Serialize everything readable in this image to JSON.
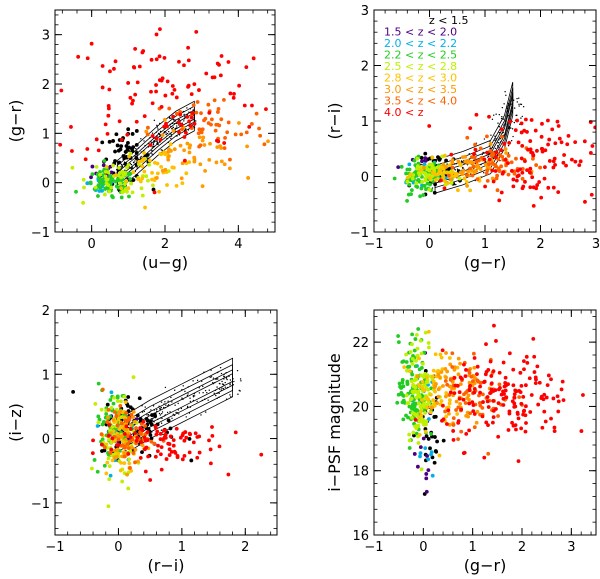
{
  "figure": {
    "description_colors": {
      "z_lt_1.5": "#000000",
      "z_1.5_2.0": "#4b0082",
      "z_2.0_2.2": "#00b0e8",
      "z_2.2_2.5": "#22cc22",
      "z_2.5_2.8": "#bff000",
      "z_2.8_3.0": "#ffc000",
      "z_3.0_3.5": "#ff9a00",
      "z_3.5_4.0": "#ff6000",
      "z_gt_4.0": "#ff0000"
    }
  },
  "chart_data": [
    {
      "type": "scatter",
      "panel": "top-left",
      "xlabel": "(u−g)",
      "ylabel": "(g−r)",
      "xlim": [
        -1.0,
        5.0
      ],
      "ylim": [
        -1.0,
        3.5
      ],
      "xticks": [
        0,
        2,
        4
      ],
      "xtick_labels": [
        "0",
        "2",
        "4"
      ],
      "yticks": [
        -1,
        0,
        1,
        2,
        3
      ],
      "ytick_labels": [
        "−1",
        "0",
        "1",
        "2",
        "3"
      ],
      "grid": false,
      "has_contours": true,
      "series": [
        {
          "color": "#000000",
          "center": [
            0.9,
            0.5
          ],
          "spread": [
            0.35,
            0.25
          ],
          "count": 60
        },
        {
          "color": "#4b0082",
          "center": [
            0.3,
            0.2
          ],
          "spread": [
            0.2,
            0.15
          ],
          "count": 12
        },
        {
          "color": "#00b0e8",
          "center": [
            0.3,
            0.0
          ],
          "spread": [
            0.2,
            0.15
          ],
          "count": 18
        },
        {
          "color": "#22cc22",
          "center": [
            0.5,
            -0.05
          ],
          "spread": [
            0.35,
            0.15
          ],
          "count": 70
        },
        {
          "color": "#bff000",
          "center": [
            0.9,
            0.1
          ],
          "spread": [
            0.5,
            0.2
          ],
          "count": 50
        },
        {
          "color": "#ffc000",
          "center": [
            1.8,
            0.3
          ],
          "spread": [
            0.6,
            0.2
          ],
          "count": 45
        },
        {
          "color": "#ff9a00",
          "center": [
            2.6,
            0.6
          ],
          "spread": [
            0.7,
            0.3
          ],
          "count": 45
        },
        {
          "color": "#ff6000",
          "center": [
            3.2,
            1.1
          ],
          "spread": [
            0.8,
            0.35
          ],
          "count": 50
        },
        {
          "color": "#ff0000",
          "center": [
            2.0,
            1.8
          ],
          "spread": [
            1.5,
            0.7
          ],
          "count": 120
        }
      ]
    },
    {
      "type": "scatter",
      "panel": "top-right",
      "xlabel": "(g−r)",
      "ylabel": "(r−i)",
      "xlim": [
        -1.0,
        3.0
      ],
      "ylim": [
        -1.0,
        3.0
      ],
      "xticks": [
        -1,
        0,
        1,
        2,
        3
      ],
      "xtick_labels": [
        "−1",
        "0",
        "1",
        "2",
        "3"
      ],
      "yticks": [
        -1,
        0,
        1,
        2,
        3
      ],
      "ytick_labels": [
        "−1",
        "0",
        "1",
        "2",
        "3"
      ],
      "grid": false,
      "has_contours": true,
      "legend": {
        "position": "top-left",
        "entries": [
          {
            "label": "z < 1.5",
            "color": "#000000"
          },
          {
            "label": "1.5 < z < 2.0",
            "color": "#4b0082"
          },
          {
            "label": "2.0 < z < 2.2",
            "color": "#00b0e8"
          },
          {
            "label": "2.2 < z < 2.5",
            "color": "#22cc22"
          },
          {
            "label": "2.5 < z < 2.8",
            "color": "#bff000"
          },
          {
            "label": "2.8 < z < 3.0",
            "color": "#ffc000"
          },
          {
            "label": "3.0 < z < 3.5",
            "color": "#ff9a00"
          },
          {
            "label": "3.5 < z < 4.0",
            "color": "#ff6000"
          },
          {
            "label": "4.0 < z",
            "color": "#ff0000"
          }
        ]
      },
      "series": [
        {
          "color": "#000000",
          "center": [
            0.2,
            0.1
          ],
          "spread": [
            0.2,
            0.15
          ],
          "count": 50
        },
        {
          "color": "#4b0082",
          "center": [
            0.0,
            0.15
          ],
          "spread": [
            0.15,
            0.12
          ],
          "count": 12
        },
        {
          "color": "#00b0e8",
          "center": [
            -0.1,
            0.1
          ],
          "spread": [
            0.15,
            0.12
          ],
          "count": 18
        },
        {
          "color": "#22cc22",
          "center": [
            -0.15,
            0.0
          ],
          "spread": [
            0.2,
            0.15
          ],
          "count": 80
        },
        {
          "color": "#bff000",
          "center": [
            0.0,
            0.05
          ],
          "spread": [
            0.2,
            0.12
          ],
          "count": 55
        },
        {
          "color": "#ffc000",
          "center": [
            0.4,
            0.05
          ],
          "spread": [
            0.3,
            0.12
          ],
          "count": 45
        },
        {
          "color": "#ff9a00",
          "center": [
            0.8,
            0.15
          ],
          "spread": [
            0.35,
            0.15
          ],
          "count": 45
        },
        {
          "color": "#ff6000",
          "center": [
            1.2,
            0.2
          ],
          "spread": [
            0.35,
            0.2
          ],
          "count": 60
        },
        {
          "color": "#ff0000",
          "center": [
            1.8,
            0.4
          ],
          "spread": [
            0.6,
            0.4
          ],
          "count": 120
        }
      ]
    },
    {
      "type": "scatter",
      "panel": "bottom-left",
      "xlabel": "(r−i)",
      "ylabel": "(i−z)",
      "xlim": [
        -1.0,
        2.5
      ],
      "ylim": [
        -1.5,
        2.0
      ],
      "xticks": [
        -1,
        0,
        1,
        2
      ],
      "xtick_labels": [
        "−1",
        "0",
        "1",
        "2"
      ],
      "yticks": [
        -1,
        0,
        1,
        2
      ],
      "ytick_labels": [
        "−1",
        "0",
        "1",
        "2"
      ],
      "grid": false,
      "has_contours": true,
      "series": [
        {
          "color": "#000000",
          "center": [
            0.3,
            0.2
          ],
          "spread": [
            0.3,
            0.25
          ],
          "count": 80
        },
        {
          "color": "#4b0082",
          "center": [
            0.0,
            0.1
          ],
          "spread": [
            0.12,
            0.2
          ],
          "count": 10
        },
        {
          "color": "#00b0e8",
          "center": [
            -0.05,
            0.1
          ],
          "spread": [
            0.12,
            0.25
          ],
          "count": 15
        },
        {
          "color": "#22cc22",
          "center": [
            -0.1,
            0.2
          ],
          "spread": [
            0.15,
            0.3
          ],
          "count": 70
        },
        {
          "color": "#bff000",
          "center": [
            0.0,
            0.0
          ],
          "spread": [
            0.15,
            0.35
          ],
          "count": 60
        },
        {
          "color": "#ffc000",
          "center": [
            0.05,
            -0.05
          ],
          "spread": [
            0.12,
            0.3
          ],
          "count": 45
        },
        {
          "color": "#ff9a00",
          "center": [
            0.1,
            0.0
          ],
          "spread": [
            0.15,
            0.25
          ],
          "count": 45
        },
        {
          "color": "#ff6000",
          "center": [
            0.15,
            0.05
          ],
          "spread": [
            0.2,
            0.2
          ],
          "count": 50
        },
        {
          "color": "#ff0000",
          "center": [
            0.6,
            -0.05
          ],
          "spread": [
            0.5,
            0.2
          ],
          "count": 90
        }
      ]
    },
    {
      "type": "scatter",
      "panel": "bottom-right",
      "xlabel": "(g−r)",
      "ylabel": "i−PSF magnitude",
      "xlim": [
        -1.0,
        3.5
      ],
      "ylim": [
        16,
        23
      ],
      "xticks": [
        -1,
        0,
        1,
        2,
        3
      ],
      "xtick_labels": [
        "−1",
        "0",
        "1",
        "2",
        "3"
      ],
      "yticks": [
        16,
        18,
        20,
        22
      ],
      "ytick_labels": [
        "16",
        "18",
        "20",
        "22"
      ],
      "grid": false,
      "has_contours": false,
      "series": [
        {
          "color": "#000000",
          "center": [
            0.15,
            19.2
          ],
          "spread": [
            0.15,
            0.9
          ],
          "count": 30
        },
        {
          "color": "#4b0082",
          "center": [
            0.0,
            18.8
          ],
          "spread": [
            0.1,
            0.8
          ],
          "count": 12
        },
        {
          "color": "#00b0e8",
          "center": [
            0.0,
            19.5
          ],
          "spread": [
            0.12,
            1.0
          ],
          "count": 20
        },
        {
          "color": "#22cc22",
          "center": [
            -0.2,
            20.5
          ],
          "spread": [
            0.15,
            0.8
          ],
          "count": 110
        },
        {
          "color": "#bff000",
          "center": [
            -0.05,
            20.5
          ],
          "spread": [
            0.15,
            0.8
          ],
          "count": 100
        },
        {
          "color": "#ffc000",
          "center": [
            0.2,
            20.6
          ],
          "spread": [
            0.2,
            0.7
          ],
          "count": 60
        },
        {
          "color": "#ff9a00",
          "center": [
            0.6,
            20.6
          ],
          "spread": [
            0.3,
            0.6
          ],
          "count": 60
        },
        {
          "color": "#ff6000",
          "center": [
            1.1,
            20.4
          ],
          "spread": [
            0.35,
            0.6
          ],
          "count": 60
        },
        {
          "color": "#ff0000",
          "center": [
            1.7,
            20.2
          ],
          "spread": [
            0.65,
            0.7
          ],
          "count": 170
        }
      ]
    }
  ]
}
